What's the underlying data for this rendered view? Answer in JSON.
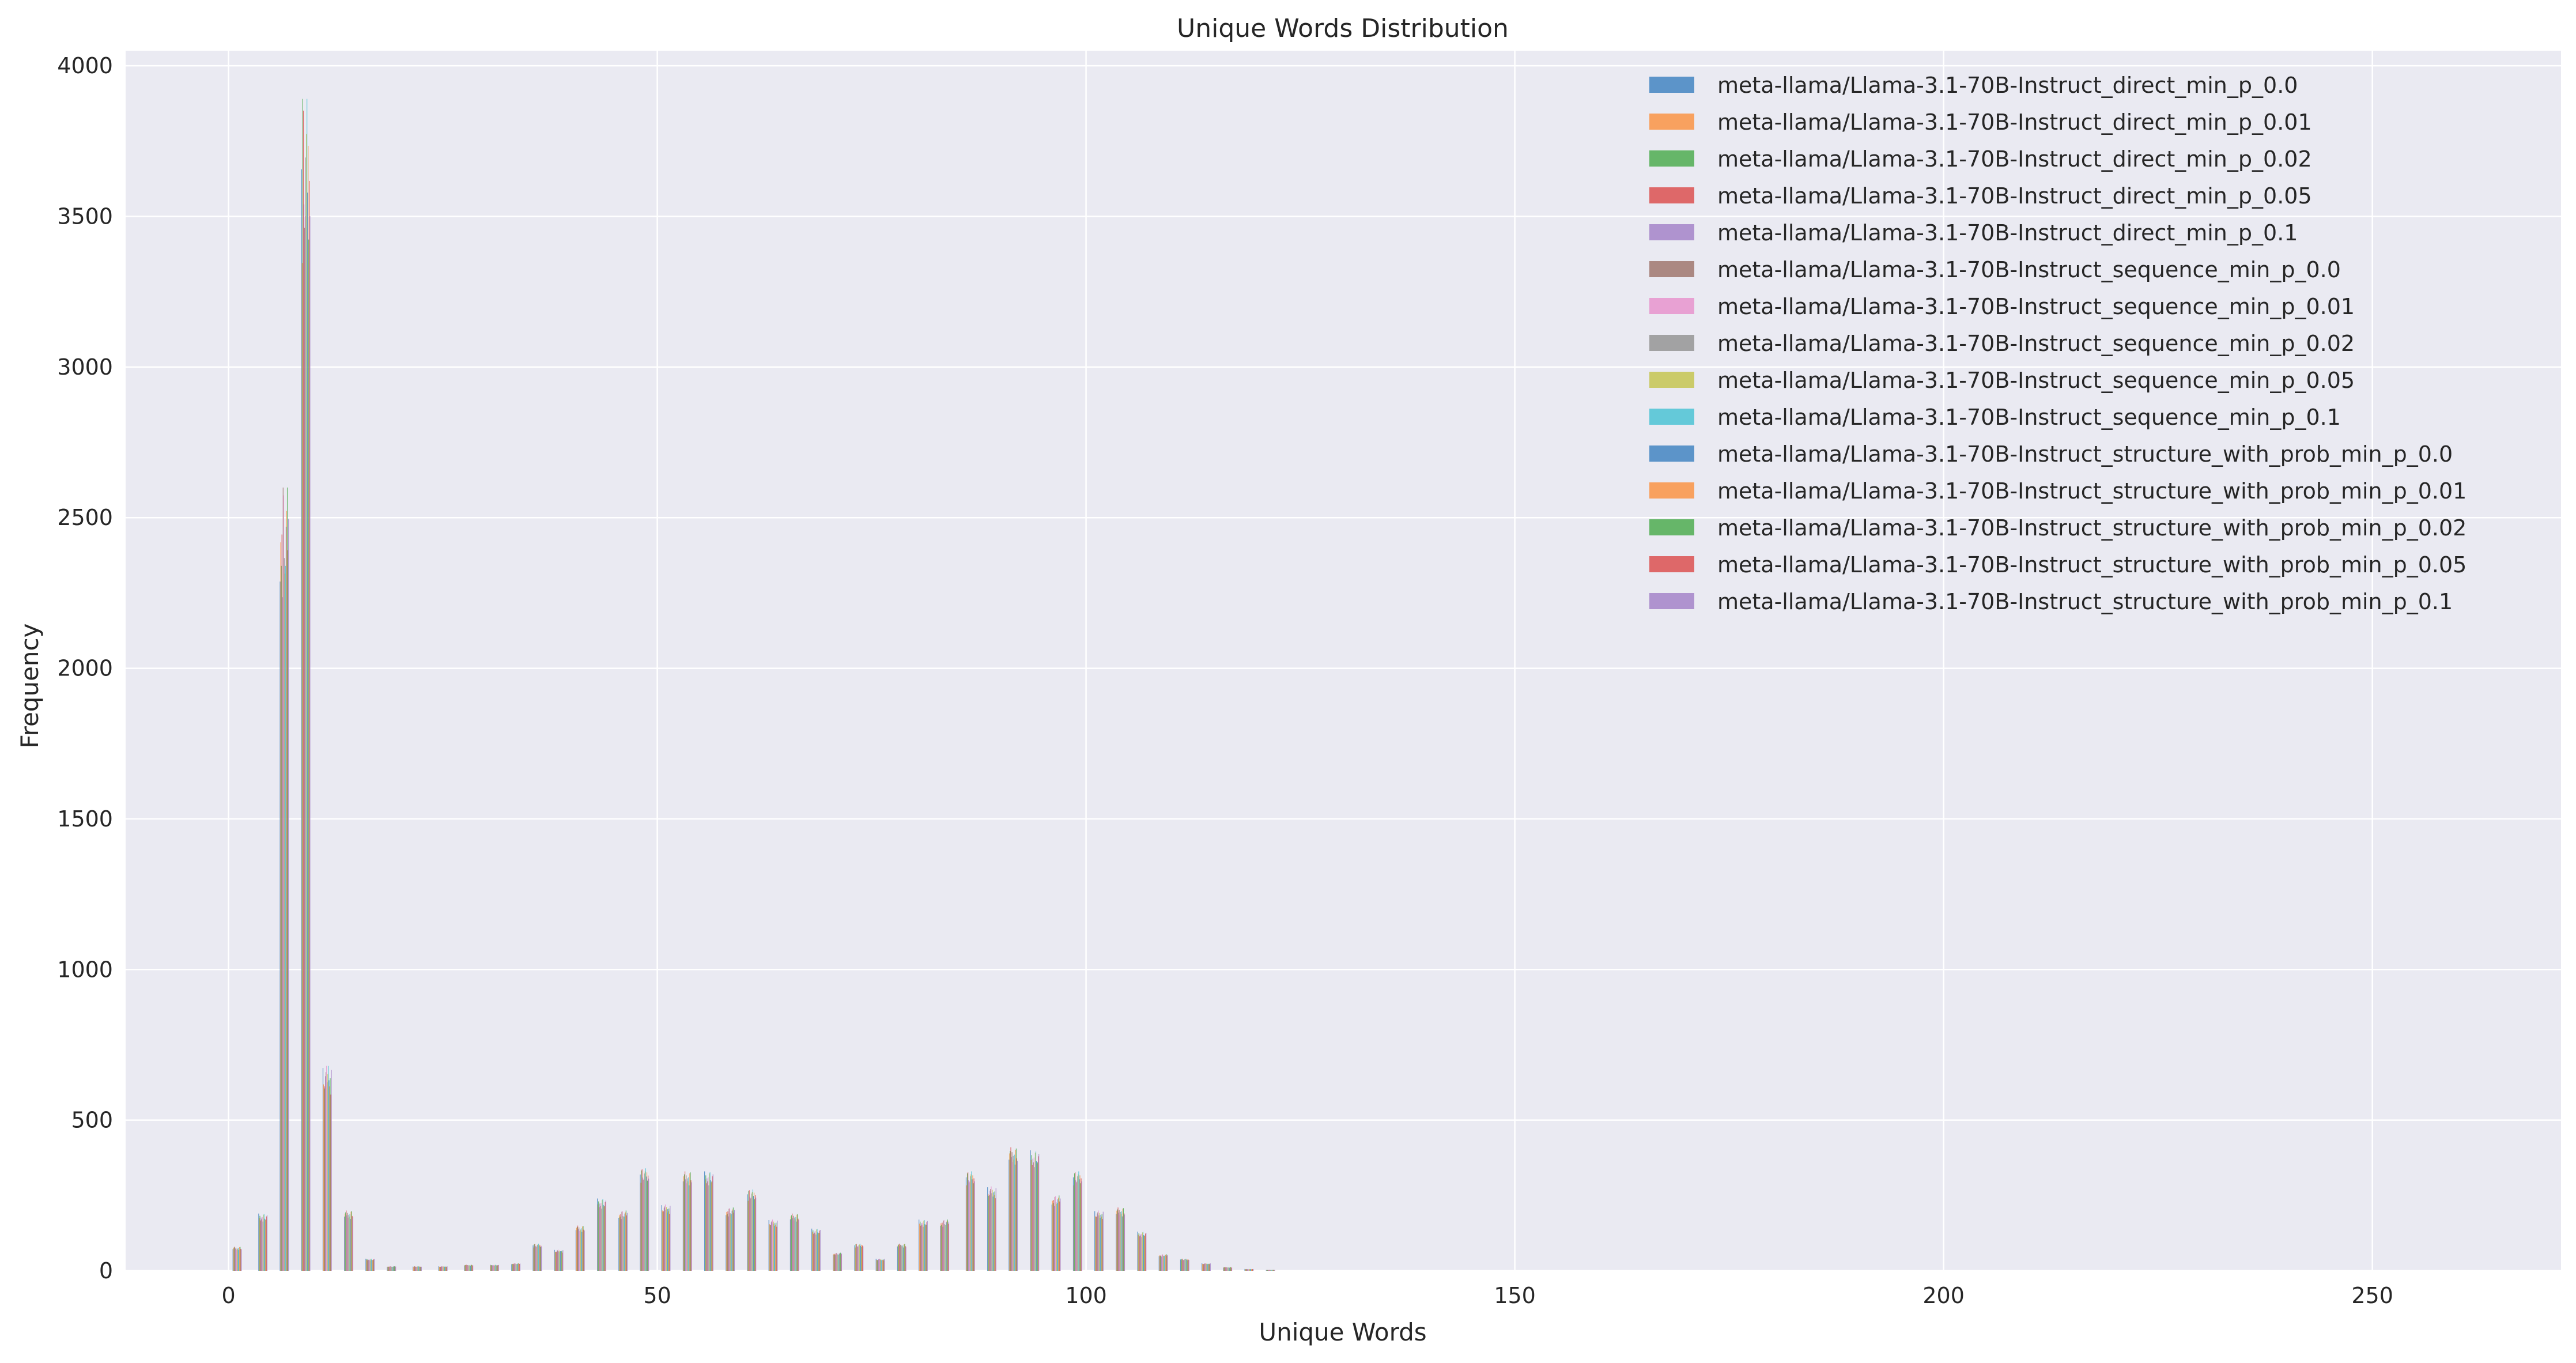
{
  "chart_data": {
    "type": "bar",
    "title": "Unique Words Distribution",
    "xlabel": "Unique Words",
    "ylabel": "Frequency",
    "xlim": [
      -12,
      272
    ],
    "ylim": [
      0,
      4050
    ],
    "xticks": [
      0,
      50,
      100,
      150,
      200,
      250
    ],
    "yticks": [
      0,
      500,
      1000,
      1500,
      2000,
      2500,
      3000,
      3500,
      4000
    ],
    "grid": true,
    "legend_position": "top-right",
    "bin_width_data_units": 2.5,
    "series": [
      {
        "name": "meta-llama/Llama-3.1-70B-Instruct_direct_min_p_0.0",
        "color": "#4c8bc4"
      },
      {
        "name": "meta-llama/Llama-3.1-70B-Instruct_direct_min_p_0.01",
        "color": "#f9994f"
      },
      {
        "name": "meta-llama/Llama-3.1-70B-Instruct_direct_min_p_0.02",
        "color": "#58b05a"
      },
      {
        "name": "meta-llama/Llama-3.1-70B-Instruct_direct_min_p_0.05",
        "color": "#dd5a5a"
      },
      {
        "name": "meta-llama/Llama-3.1-70B-Instruct_direct_min_p_0.1",
        "color": "#a98acb"
      },
      {
        "name": "meta-llama/Llama-3.1-70B-Instruct_sequence_min_p_0.0",
        "color": "#a47d76"
      },
      {
        "name": "meta-llama/Llama-3.1-70B-Instruct_sequence_min_p_0.01",
        "color": "#e899cf"
      },
      {
        "name": "meta-llama/Llama-3.1-70B-Instruct_sequence_min_p_0.02",
        "color": "#9a9a9a"
      },
      {
        "name": "meta-llama/Llama-3.1-70B-Instruct_sequence_min_p_0.05",
        "color": "#c8c85a"
      },
      {
        "name": "meta-llama/Llama-3.1-70B-Instruct_sequence_min_p_0.1",
        "color": "#55c5d6"
      },
      {
        "name": "meta-llama/Llama-3.1-70B-Instruct_structure_with_prob_min_p_0.0",
        "color": "#4c8bc4"
      },
      {
        "name": "meta-llama/Llama-3.1-70B-Instruct_structure_with_prob_min_p_0.01",
        "color": "#f9994f"
      },
      {
        "name": "meta-llama/Llama-3.1-70B-Instruct_structure_with_prob_min_p_0.02",
        "color": "#58b05a"
      },
      {
        "name": "meta-llama/Llama-3.1-70B-Instruct_structure_with_prob_min_p_0.05",
        "color": "#dd5a5a"
      },
      {
        "name": "meta-llama/Llama-3.1-70B-Instruct_structure_with_prob_min_p_0.1",
        "color": "#a98acb"
      }
    ],
    "bins": [
      {
        "x": 1,
        "peak": 80
      },
      {
        "x": 4,
        "peak": 190
      },
      {
        "x": 6.5,
        "peak": 2600
      },
      {
        "x": 9,
        "peak": 3890
      },
      {
        "x": 11.5,
        "peak": 680
      },
      {
        "x": 14,
        "peak": 200
      },
      {
        "x": 16.5,
        "peak": 40
      },
      {
        "x": 19,
        "peak": 15
      },
      {
        "x": 22,
        "peak": 15
      },
      {
        "x": 25,
        "peak": 15
      },
      {
        "x": 28,
        "peak": 20
      },
      {
        "x": 31,
        "peak": 20
      },
      {
        "x": 33.5,
        "peak": 25
      },
      {
        "x": 36,
        "peak": 90
      },
      {
        "x": 38.5,
        "peak": 70
      },
      {
        "x": 41,
        "peak": 150
      },
      {
        "x": 43.5,
        "peak": 240
      },
      {
        "x": 46,
        "peak": 200
      },
      {
        "x": 48.5,
        "peak": 340
      },
      {
        "x": 51,
        "peak": 220
      },
      {
        "x": 53.5,
        "peak": 330
      },
      {
        "x": 56,
        "peak": 330
      },
      {
        "x": 58.5,
        "peak": 210
      },
      {
        "x": 61,
        "peak": 270
      },
      {
        "x": 63.5,
        "peak": 170
      },
      {
        "x": 66,
        "peak": 190
      },
      {
        "x": 68.5,
        "peak": 140
      },
      {
        "x": 71,
        "peak": 60
      },
      {
        "x": 73.5,
        "peak": 90
      },
      {
        "x": 76,
        "peak": 40
      },
      {
        "x": 78.5,
        "peak": 90
      },
      {
        "x": 81,
        "peak": 170
      },
      {
        "x": 83.5,
        "peak": 170
      },
      {
        "x": 86.5,
        "peak": 330
      },
      {
        "x": 89,
        "peak": 280
      },
      {
        "x": 91.5,
        "peak": 410
      },
      {
        "x": 94,
        "peak": 400
      },
      {
        "x": 96.5,
        "peak": 250
      },
      {
        "x": 99,
        "peak": 330
      },
      {
        "x": 101.5,
        "peak": 200
      },
      {
        "x": 104,
        "peak": 210
      },
      {
        "x": 106.5,
        "peak": 130
      },
      {
        "x": 109,
        "peak": 55
      },
      {
        "x": 111.5,
        "peak": 40
      },
      {
        "x": 114,
        "peak": 25
      },
      {
        "x": 116.5,
        "peak": 12
      },
      {
        "x": 119,
        "peak": 6
      },
      {
        "x": 121.5,
        "peak": 3
      }
    ]
  }
}
